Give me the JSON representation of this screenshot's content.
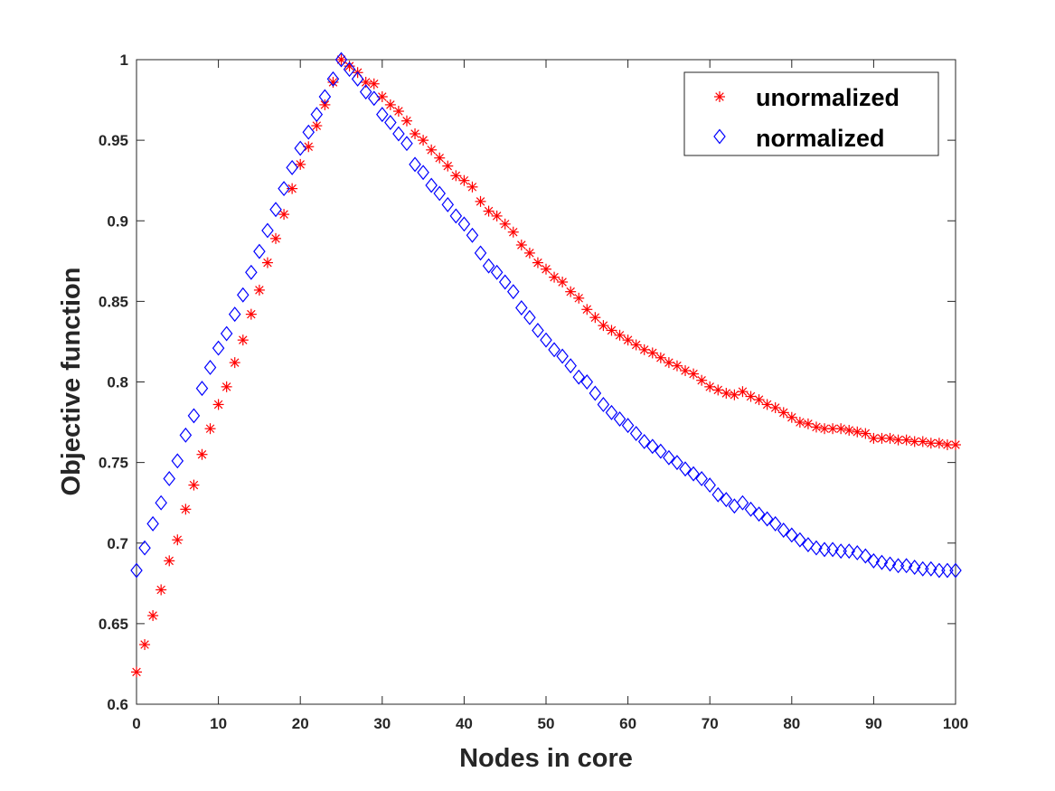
{
  "chart_data": {
    "type": "scatter",
    "xlabel": "Nodes in  core",
    "ylabel": "Objective function",
    "xlim": [
      0,
      100
    ],
    "ylim": [
      0.6,
      1
    ],
    "xticks": [
      0,
      10,
      20,
      30,
      40,
      50,
      60,
      70,
      80,
      90,
      100
    ],
    "yticks": [
      0.6,
      0.65,
      0.7,
      0.75,
      0.8,
      0.85,
      0.9,
      0.95,
      1
    ],
    "grid": false,
    "legend": "top-right",
    "series": [
      {
        "name": "unormalized",
        "marker": "asterisk",
        "color": "#ff0000",
        "x": [
          0,
          1,
          2,
          3,
          4,
          5,
          6,
          7,
          8,
          9,
          10,
          11,
          12,
          13,
          14,
          15,
          16,
          17,
          18,
          19,
          20,
          21,
          22,
          23,
          24,
          25,
          26,
          27,
          28,
          29,
          30,
          31,
          32,
          33,
          34,
          35,
          36,
          37,
          38,
          39,
          40,
          41,
          42,
          43,
          44,
          45,
          46,
          47,
          48,
          49,
          50,
          51,
          52,
          53,
          54,
          55,
          56,
          57,
          58,
          59,
          60,
          61,
          62,
          63,
          64,
          65,
          66,
          67,
          68,
          69,
          70,
          71,
          72,
          73,
          74,
          75,
          76,
          77,
          78,
          79,
          80,
          81,
          82,
          83,
          84,
          85,
          86,
          87,
          88,
          89,
          90,
          91,
          92,
          93,
          94,
          95,
          96,
          97,
          98,
          99,
          100
        ],
        "values": [
          0.62,
          0.637,
          0.655,
          0.671,
          0.689,
          0.702,
          0.721,
          0.736,
          0.755,
          0.771,
          0.786,
          0.797,
          0.812,
          0.826,
          0.842,
          0.857,
          0.874,
          0.889,
          0.904,
          0.92,
          0.935,
          0.946,
          0.959,
          0.972,
          0.986,
          1.0,
          0.996,
          0.992,
          0.986,
          0.985,
          0.977,
          0.972,
          0.968,
          0.962,
          0.954,
          0.95,
          0.944,
          0.939,
          0.934,
          0.928,
          0.925,
          0.921,
          0.912,
          0.906,
          0.903,
          0.898,
          0.893,
          0.885,
          0.88,
          0.874,
          0.87,
          0.865,
          0.862,
          0.856,
          0.852,
          0.845,
          0.84,
          0.835,
          0.832,
          0.829,
          0.826,
          0.823,
          0.82,
          0.818,
          0.815,
          0.812,
          0.81,
          0.807,
          0.805,
          0.801,
          0.797,
          0.795,
          0.793,
          0.792,
          0.794,
          0.791,
          0.789,
          0.786,
          0.784,
          0.781,
          0.778,
          0.775,
          0.774,
          0.772,
          0.771,
          0.771,
          0.771,
          0.77,
          0.769,
          0.768,
          0.765,
          0.765,
          0.765,
          0.764,
          0.764,
          0.763,
          0.763,
          0.762,
          0.762,
          0.761,
          0.761
        ]
      },
      {
        "name": "normalized",
        "marker": "diamond",
        "color": "#0000ff",
        "x": [
          0,
          1,
          2,
          3,
          4,
          5,
          6,
          7,
          8,
          9,
          10,
          11,
          12,
          13,
          14,
          15,
          16,
          17,
          18,
          19,
          20,
          21,
          22,
          23,
          24,
          25,
          26,
          27,
          28,
          29,
          30,
          31,
          32,
          33,
          34,
          35,
          36,
          37,
          38,
          39,
          40,
          41,
          42,
          43,
          44,
          45,
          46,
          47,
          48,
          49,
          50,
          51,
          52,
          53,
          54,
          55,
          56,
          57,
          58,
          59,
          60,
          61,
          62,
          63,
          64,
          65,
          66,
          67,
          68,
          69,
          70,
          71,
          72,
          73,
          74,
          75,
          76,
          77,
          78,
          79,
          80,
          81,
          82,
          83,
          84,
          85,
          86,
          87,
          88,
          89,
          90,
          91,
          92,
          93,
          94,
          95,
          96,
          97,
          98,
          99,
          100
        ],
        "values": [
          0.683,
          0.697,
          0.712,
          0.725,
          0.74,
          0.751,
          0.767,
          0.779,
          0.796,
          0.809,
          0.821,
          0.83,
          0.842,
          0.854,
          0.868,
          0.881,
          0.894,
          0.907,
          0.92,
          0.933,
          0.945,
          0.955,
          0.966,
          0.977,
          0.988,
          1.0,
          0.994,
          0.988,
          0.98,
          0.976,
          0.966,
          0.961,
          0.954,
          0.948,
          0.935,
          0.93,
          0.922,
          0.917,
          0.91,
          0.903,
          0.898,
          0.891,
          0.88,
          0.872,
          0.868,
          0.862,
          0.856,
          0.846,
          0.84,
          0.832,
          0.826,
          0.82,
          0.816,
          0.81,
          0.803,
          0.8,
          0.793,
          0.786,
          0.781,
          0.777,
          0.773,
          0.768,
          0.763,
          0.76,
          0.757,
          0.753,
          0.75,
          0.746,
          0.743,
          0.74,
          0.736,
          0.73,
          0.727,
          0.723,
          0.725,
          0.721,
          0.718,
          0.715,
          0.712,
          0.708,
          0.705,
          0.702,
          0.699,
          0.697,
          0.696,
          0.696,
          0.695,
          0.695,
          0.694,
          0.692,
          0.689,
          0.688,
          0.687,
          0.686,
          0.686,
          0.685,
          0.684,
          0.684,
          0.683,
          0.683,
          0.683
        ]
      }
    ]
  }
}
